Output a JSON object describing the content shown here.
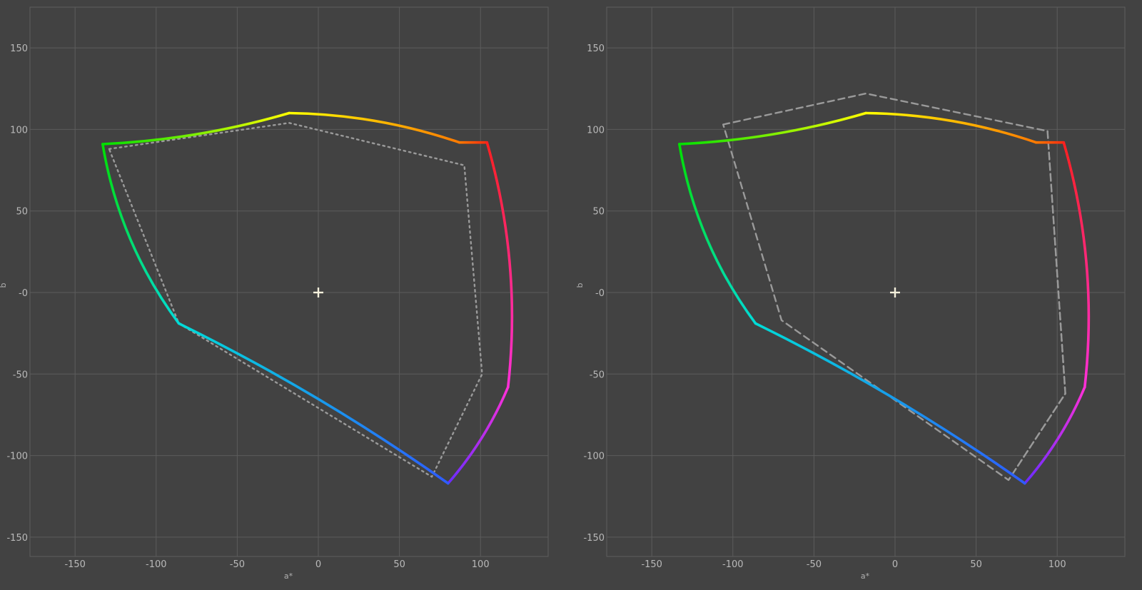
{
  "chart_data": [
    {
      "type": "line",
      "xlabel": "a*",
      "ylabel": "b",
      "xlim": [
        -178,
        142
      ],
      "ylim": [
        -162,
        175
      ],
      "xticks": [
        -150,
        -100,
        -50,
        0,
        50,
        100
      ],
      "yticks": [
        150,
        100,
        50,
        0,
        -50,
        -100,
        -150
      ],
      "ytick_labels": [
        "150",
        "100",
        "50",
        "-0",
        "-50",
        "-100",
        "-150"
      ],
      "grid": true,
      "white_point": [
        0,
        0
      ],
      "gamut_series": [
        {
          "from": [
            -133,
            91
          ],
          "to": [
            -18,
            110
          ],
          "c0": "#00e000",
          "c1": "#ffff00",
          "bulge": 3
        },
        {
          "from": [
            -18,
            110
          ],
          "to": [
            87,
            92
          ],
          "c0": "#ffff00",
          "c1": "#ff7a00",
          "bulge": -4
        },
        {
          "from": [
            87,
            92
          ],
          "to": [
            104,
            92
          ],
          "c0": "#ff7a00",
          "c1": "#ff2a10",
          "bulge": 0
        },
        {
          "from": [
            104,
            92
          ],
          "to": [
            117,
            -58
          ],
          "c0": "#ff2020",
          "c1": "#ff30d8",
          "bulge": -5
        },
        {
          "from": [
            117,
            -58
          ],
          "to": [
            80,
            -117
          ],
          "c0": "#ff30d8",
          "c1": "#6a2cff",
          "bulge": -4
        },
        {
          "from": [
            80,
            -117
          ],
          "to": [
            -86,
            -19
          ],
          "c0": "#2e5cff",
          "c1": "#00dcd8",
          "bulge": 2
        },
        {
          "from": [
            -86,
            -19
          ],
          "to": [
            -133,
            91
          ],
          "c0": "#00dcd8",
          "c1": "#00e000",
          "bulge": -6
        }
      ],
      "reference_series": [
        {
          "style": "dotted",
          "points": [
            [
              -129,
              88
            ],
            [
              -18,
              104
            ],
            [
              90,
              78
            ],
            [
              101,
              -50
            ],
            [
              70,
              -113
            ],
            [
              -86,
              -19
            ],
            [
              -129,
              88
            ]
          ]
        }
      ]
    },
    {
      "type": "line",
      "xlabel": "a*",
      "ylabel": "b",
      "xlim": [
        -178,
        142
      ],
      "ylim": [
        -162,
        175
      ],
      "xticks": [
        -150,
        -100,
        -50,
        0,
        50,
        100
      ],
      "yticks": [
        150,
        100,
        50,
        0,
        -50,
        -100,
        -150
      ],
      "ytick_labels": [
        "150",
        "100",
        "50",
        "-0",
        "-50",
        "-100",
        "-150"
      ],
      "grid": true,
      "white_point": [
        0,
        0
      ],
      "gamut_series": [
        {
          "from": [
            -133,
            91
          ],
          "to": [
            -18,
            110
          ],
          "c0": "#00e000",
          "c1": "#ffff00",
          "bulge": 3
        },
        {
          "from": [
            -18,
            110
          ],
          "to": [
            87,
            92
          ],
          "c0": "#ffff00",
          "c1": "#ff7a00",
          "bulge": -4
        },
        {
          "from": [
            87,
            92
          ],
          "to": [
            104,
            92
          ],
          "c0": "#ff7a00",
          "c1": "#ff2a10",
          "bulge": 0
        },
        {
          "from": [
            104,
            92
          ],
          "to": [
            117,
            -58
          ],
          "c0": "#ff2020",
          "c1": "#ff30d8",
          "bulge": -5
        },
        {
          "from": [
            117,
            -58
          ],
          "to": [
            80,
            -117
          ],
          "c0": "#ff30d8",
          "c1": "#6a2cff",
          "bulge": -4
        },
        {
          "from": [
            80,
            -117
          ],
          "to": [
            -86,
            -19
          ],
          "c0": "#2e5cff",
          "c1": "#00dcd8",
          "bulge": 2
        },
        {
          "from": [
            -86,
            -19
          ],
          "to": [
            -133,
            91
          ],
          "c0": "#00dcd8",
          "c1": "#00e000",
          "bulge": -6
        }
      ],
      "reference_series": [
        {
          "style": "dashed",
          "points": [
            [
              -106,
              103
            ],
            [
              -18,
              122
            ],
            [
              94,
              99
            ],
            [
              105,
              -62
            ],
            [
              70,
              -115
            ],
            [
              -70,
              -17
            ],
            [
              -106,
              103
            ]
          ]
        },
        {
          "style": "dotted",
          "points": [
            [
              94,
              99
            ],
            [
              105,
              -62
            ],
            [
              70,
              -115
            ]
          ]
        }
      ]
    }
  ]
}
